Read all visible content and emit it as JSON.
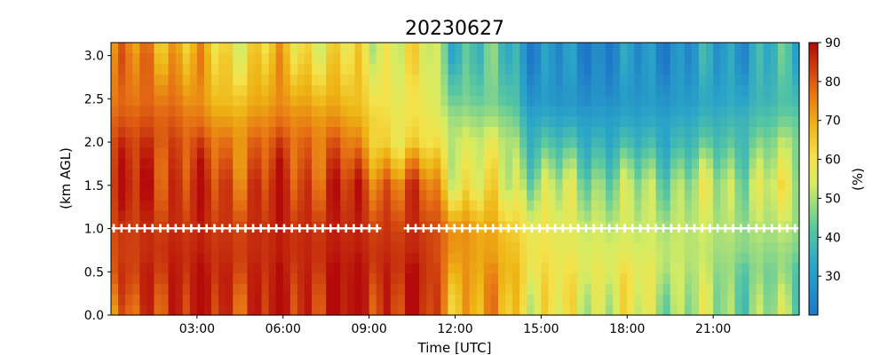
{
  "chart_data": {
    "type": "heatmap",
    "title": "20230627",
    "xlabel": "Time [UTC]",
    "ylabel": "(km AGL)",
    "colorbar_label": "(%)",
    "xlim_hours": [
      0,
      24
    ],
    "ylim": [
      0,
      3.15
    ],
    "clim": [
      20,
      90
    ],
    "colormap": "blue-teal-green-yellow-orange-red",
    "x_ticks": [
      {
        "value": 3,
        "label": "03:00"
      },
      {
        "value": 6,
        "label": "06:00"
      },
      {
        "value": 9,
        "label": "09:00"
      },
      {
        "value": 12,
        "label": "12:00"
      },
      {
        "value": 15,
        "label": "15:00"
      },
      {
        "value": 18,
        "label": "18:00"
      },
      {
        "value": 21,
        "label": "21:00"
      }
    ],
    "y_ticks": [
      {
        "value": 0.0,
        "label": "0.0"
      },
      {
        "value": 0.5,
        "label": "0.5"
      },
      {
        "value": 1.0,
        "label": "1.0"
      },
      {
        "value": 1.5,
        "label": "1.5"
      },
      {
        "value": 2.0,
        "label": "2.0"
      },
      {
        "value": 2.5,
        "label": "2.5"
      },
      {
        "value": 3.0,
        "label": "3.0"
      }
    ],
    "colorbar_ticks": [
      {
        "value": 30,
        "label": "30"
      },
      {
        "value": 40,
        "label": "40"
      },
      {
        "value": 50,
        "label": "50"
      },
      {
        "value": 60,
        "label": "60"
      },
      {
        "value": 70,
        "label": "70"
      },
      {
        "value": 80,
        "label": "80"
      },
      {
        "value": 90,
        "label": "90"
      }
    ],
    "x_hours": [
      0.0,
      2.0,
      4.0,
      6.0,
      8.0,
      10.0,
      11.0,
      12.0,
      14.0,
      14.5,
      16.0,
      18.0,
      20.0,
      22.0,
      24.0
    ],
    "heights_km": [
      0.0,
      0.5,
      1.0,
      1.5,
      2.0,
      2.5,
      3.0,
      3.15
    ],
    "values": [
      [
        70,
        88,
        84,
        86,
        88,
        86,
        85,
        70,
        68,
        60,
        56,
        55,
        50,
        48,
        48
      ],
      [
        80,
        88,
        86,
        86,
        88,
        87,
        86,
        72,
        70,
        62,
        58,
        58,
        52,
        46,
        44
      ],
      [
        82,
        86,
        84,
        86,
        86,
        84,
        84,
        75,
        65,
        60,
        55,
        52,
        52,
        50,
        50
      ],
      [
        84,
        86,
        82,
        84,
        84,
        80,
        78,
        60,
        55,
        52,
        50,
        48,
        50,
        52,
        55
      ],
      [
        82,
        84,
        76,
        80,
        78,
        60,
        62,
        55,
        52,
        40,
        38,
        36,
        38,
        42,
        50
      ],
      [
        76,
        78,
        66,
        72,
        68,
        58,
        58,
        45,
        42,
        30,
        27,
        28,
        30,
        34,
        40
      ],
      [
        74,
        74,
        62,
        66,
        60,
        58,
        56,
        40,
        38,
        28,
        25,
        26,
        28,
        32,
        38
      ],
      [
        72,
        72,
        60,
        64,
        58,
        58,
        56,
        40,
        38,
        28,
        25,
        26,
        28,
        32,
        38
      ]
    ],
    "marker_height_km": 1.0,
    "marker_gaps_hours": [
      [
        9.4,
        10.2
      ]
    ]
  }
}
